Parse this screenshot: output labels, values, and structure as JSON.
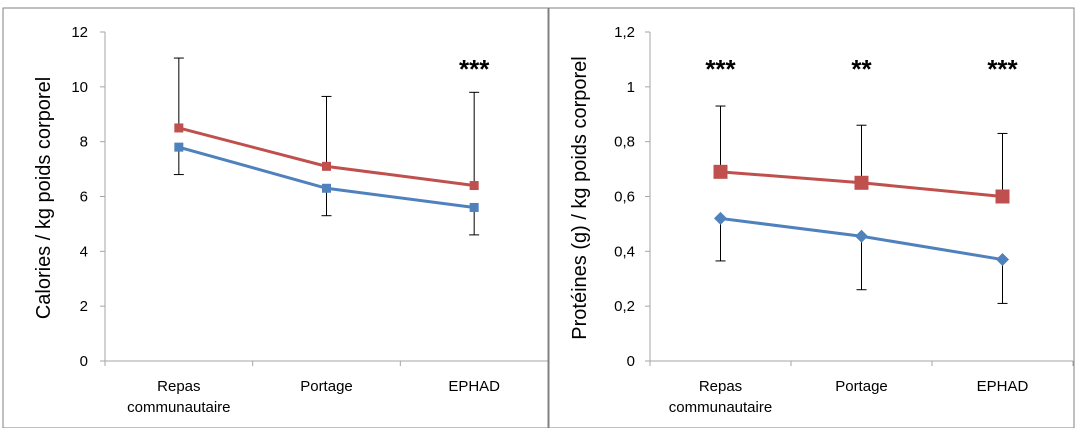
{
  "colors": {
    "series1": "#c0504d",
    "series2": "#4f81bd",
    "errorbar": "#000000",
    "axis": "#a6a6a6",
    "frame": "#808080"
  },
  "chart_data": [
    {
      "type": "line",
      "ylabel": "Calories / kg poids corporel",
      "categories": [
        [
          "Repas",
          "communautaire"
        ],
        [
          "Portage"
        ],
        [
          "EPHAD"
        ]
      ],
      "ylim": [
        0,
        12
      ],
      "yticks": [
        "0",
        "2",
        "4",
        "6",
        "8",
        "10",
        "12"
      ],
      "ytick_values": [
        0,
        2,
        4,
        6,
        8,
        10,
        12
      ],
      "grid": false,
      "series": [
        {
          "values": [
            8.5,
            7.1,
            6.4
          ],
          "marker": "square",
          "color": "#c0504d",
          "error_upper": [
            11.05,
            9.65,
            9.8
          ]
        },
        {
          "values": [
            7.8,
            6.3,
            5.6
          ],
          "marker": "square",
          "color": "#4f81bd",
          "error_lower": [
            6.8,
            5.3,
            4.6
          ]
        }
      ],
      "annotations": [
        "",
        "",
        "***"
      ]
    },
    {
      "type": "line",
      "ylabel": "Protéines (g)   / kg poids corporel",
      "categories": [
        [
          "Repas",
          "communautaire"
        ],
        [
          "Portage"
        ],
        [
          "EPHAD"
        ]
      ],
      "ylim": [
        0,
        1.2
      ],
      "yticks": [
        "0",
        "0,2",
        "0,4",
        "0,6",
        "0,8",
        "1",
        "1,2"
      ],
      "ytick_values": [
        0,
        0.2,
        0.4,
        0.6,
        0.8,
        1.0,
        1.2
      ],
      "grid": false,
      "series": [
        {
          "values": [
            0.69,
            0.65,
            0.6
          ],
          "marker": "square",
          "color": "#c0504d",
          "error_upper": [
            0.93,
            0.86,
            0.83
          ]
        },
        {
          "values": [
            0.52,
            0.455,
            0.37
          ],
          "marker": "diamond",
          "color": "#4f81bd",
          "error_lower": [
            0.365,
            0.26,
            0.21
          ]
        }
      ],
      "annotations": [
        "***",
        "**",
        "***"
      ]
    }
  ]
}
